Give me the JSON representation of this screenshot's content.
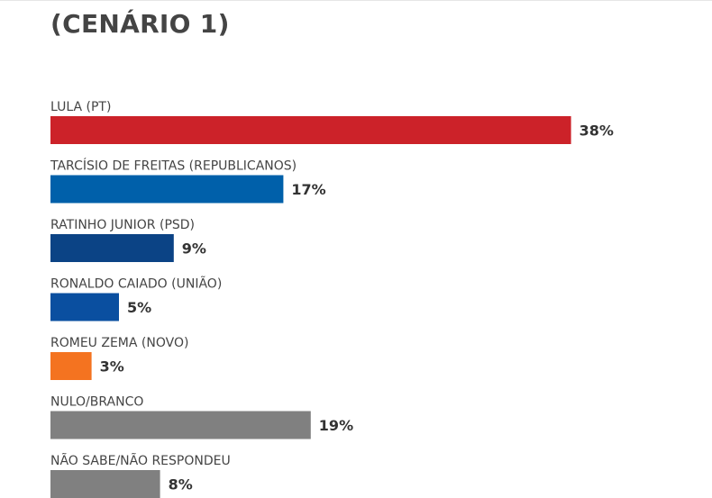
{
  "chart_data": {
    "type": "bar",
    "orientation": "horizontal",
    "title": "(CENÁRIO 1)",
    "categories": [
      "LULA (PT)",
      "TARCÍSIO DE FREITAS (REPUBLICANOS)",
      "RATINHO JUNIOR (PSD)",
      "RONALDO CAIADO (UNIÃO)",
      "ROMEU ZEMA (NOVO)",
      "NULO/BRANCO",
      "NÃO SABE/NÃO RESPONDEU"
    ],
    "values": [
      38,
      17,
      9,
      5,
      3,
      19,
      8
    ],
    "value_labels": [
      "38%",
      "17%",
      "9%",
      "5%",
      "3%",
      "19%",
      "8%"
    ],
    "colors": [
      "#cc2229",
      "#0060aa",
      "#0b4385",
      "#0a4fa0",
      "#f47320",
      "#808080",
      "#808080"
    ],
    "unit": "%",
    "grid": false,
    "legend": "none"
  }
}
